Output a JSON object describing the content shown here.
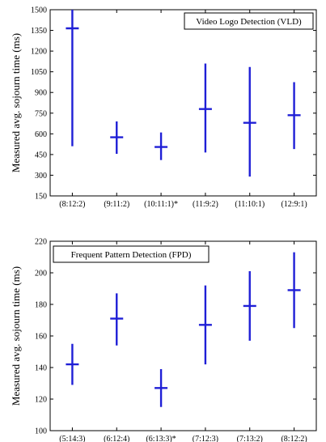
{
  "chart_data": [
    {
      "type": "errorbar",
      "title": "Video Logo Detection (VLD)",
      "ylabel": "Measured avg. sojourn time (ms)",
      "xlabel": "",
      "ylim": [
        150,
        1500
      ],
      "yticks": [
        "150",
        "300",
        "450",
        "600",
        "750",
        "900",
        "1050",
        "1200",
        "1350",
        "1500"
      ],
      "categories": [
        "(8:12:2)",
        "(9:11:2)",
        "(10:11:1)*",
        "(11:9:2)",
        "(11:10:1)",
        "(12:9:1)"
      ],
      "series": [
        {
          "mean": [
            1365,
            575,
            505,
            780,
            680,
            735
          ],
          "lower": [
            510,
            455,
            410,
            465,
            290,
            490
          ],
          "upper": [
            1500,
            690,
            610,
            1110,
            1085,
            975
          ]
        }
      ],
      "grid": false,
      "title_box": "top-right"
    },
    {
      "type": "errorbar",
      "title": "Frequent Pattern Detection (FPD)",
      "ylabel": "Measured avg. sojourn time (ms)",
      "xlabel": "",
      "ylim": [
        100,
        220
      ],
      "yticks": [
        "100",
        "120",
        "140",
        "160",
        "180",
        "200",
        "220"
      ],
      "categories": [
        "(5:14:3)",
        "(6:12:4)",
        "(6:13:3)*",
        "(7:12:3)",
        "(7:13:2)",
        "(8:12:2)"
      ],
      "series": [
        {
          "mean": [
            142,
            171,
            127,
            167,
            179,
            189
          ],
          "lower": [
            129,
            154,
            115,
            142,
            157,
            165
          ],
          "upper": [
            155,
            187,
            139,
            192,
            201,
            213
          ]
        }
      ],
      "grid": false,
      "title_box": "top-left"
    }
  ],
  "colors": {
    "errorbar": "#1f1fd6",
    "axis": "#000000"
  }
}
